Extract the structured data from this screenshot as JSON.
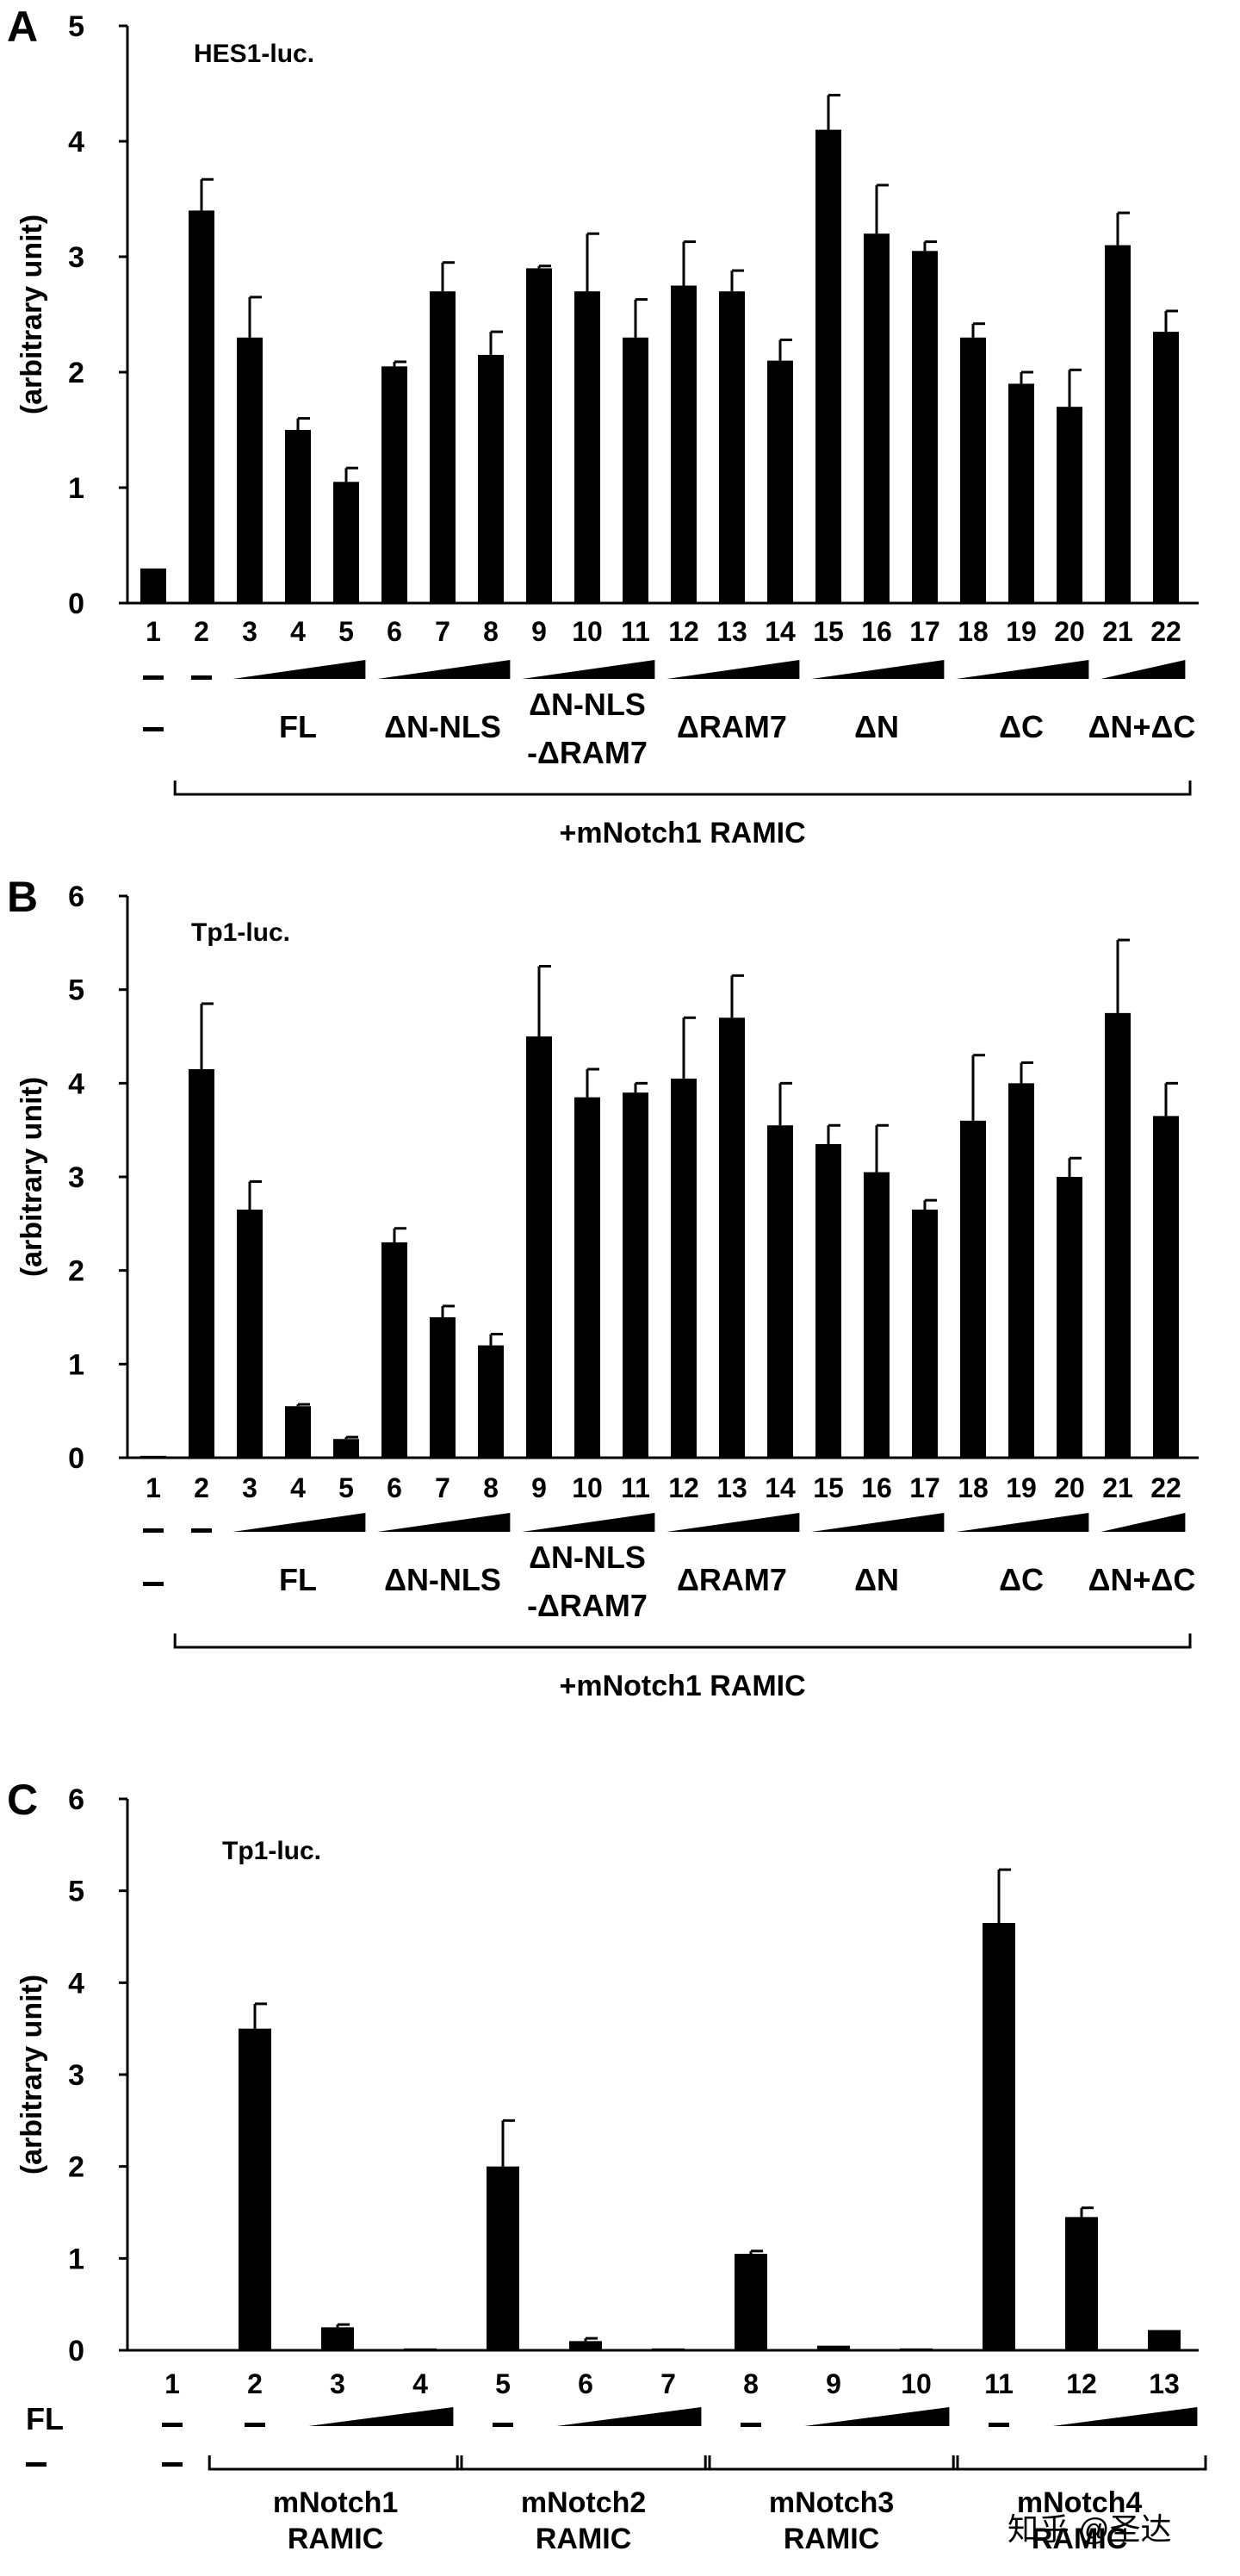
{
  "watermark": "知乎 @圣达",
  "chart_data": [
    {
      "panel": "A",
      "type": "bar",
      "title": "HES1-luc.",
      "ylabel": "(arbitrary unit)",
      "ylim": [
        0,
        5
      ],
      "yticks": [
        "0",
        "1",
        "2",
        "3",
        "4",
        "5"
      ],
      "categories": [
        "1",
        "2",
        "3",
        "4",
        "5",
        "6",
        "7",
        "8",
        "9",
        "10",
        "11",
        "12",
        "13",
        "14",
        "15",
        "16",
        "17",
        "18",
        "19",
        "20",
        "21",
        "22"
      ],
      "values": [
        0.3,
        3.4,
        2.3,
        1.5,
        1.05,
        2.05,
        2.7,
        2.15,
        2.9,
        2.7,
        2.3,
        2.75,
        2.7,
        2.1,
        4.1,
        3.2,
        3.05,
        2.3,
        1.9,
        1.7,
        3.1,
        2.35
      ],
      "errors": [
        0.0,
        0.27,
        0.35,
        0.1,
        0.12,
        0.04,
        0.25,
        0.2,
        0.02,
        0.5,
        0.33,
        0.38,
        0.18,
        0.18,
        0.3,
        0.42,
        0.08,
        0.12,
        0.1,
        0.32,
        0.28,
        0.18
      ],
      "dash_row": [
        "1",
        "2"
      ],
      "ramp_groups": [
        [
          "3",
          "5"
        ],
        [
          "6",
          "8"
        ],
        [
          "9",
          "11"
        ],
        [
          "12",
          "14"
        ],
        [
          "15",
          "17"
        ],
        [
          "18",
          "20"
        ],
        [
          "21",
          "22"
        ]
      ],
      "group_labels": [
        {
          "lines": [
            "–"
          ],
          "at": "1"
        },
        {
          "lines": [
            "FL"
          ],
          "at": "4"
        },
        {
          "lines": [
            "ΔN-NLS"
          ],
          "at": "7"
        },
        {
          "lines": [
            "ΔN-NLS",
            "-ΔRAM7"
          ],
          "at": "10"
        },
        {
          "lines": [
            "ΔRAM7"
          ],
          "at": "13"
        },
        {
          "lines": [
            "ΔN"
          ],
          "at": "16"
        },
        {
          "lines": [
            "ΔC"
          ],
          "at": "19"
        },
        {
          "lines": [
            "ΔN+ΔC"
          ],
          "at": "21.5"
        }
      ],
      "bracket": {
        "from": "2",
        "to": "22",
        "label": "+mNotch1 RAMIC"
      }
    },
    {
      "panel": "B",
      "type": "bar",
      "title": "Tp1-luc.",
      "ylabel": "(arbitrary unit)",
      "ylim": [
        0,
        6
      ],
      "yticks": [
        "0",
        "1",
        "2",
        "3",
        "4",
        "5",
        "6"
      ],
      "categories": [
        "1",
        "2",
        "3",
        "4",
        "5",
        "6",
        "7",
        "8",
        "9",
        "10",
        "11",
        "12",
        "13",
        "14",
        "15",
        "16",
        "17",
        "18",
        "19",
        "20",
        "21",
        "22"
      ],
      "values": [
        0.02,
        4.15,
        2.65,
        0.55,
        0.2,
        2.3,
        1.5,
        1.2,
        4.5,
        3.85,
        3.9,
        4.05,
        4.7,
        3.55,
        3.35,
        3.05,
        2.65,
        3.6,
        4.0,
        3.0,
        4.75,
        3.65
      ],
      "errors": [
        0.0,
        0.7,
        0.3,
        0.02,
        0.02,
        0.15,
        0.12,
        0.12,
        0.75,
        0.3,
        0.1,
        0.65,
        0.45,
        0.45,
        0.2,
        0.5,
        0.1,
        0.7,
        0.22,
        0.2,
        0.78,
        0.35
      ],
      "dash_row": [
        "1",
        "2"
      ],
      "ramp_groups": [
        [
          "3",
          "5"
        ],
        [
          "6",
          "8"
        ],
        [
          "9",
          "11"
        ],
        [
          "12",
          "14"
        ],
        [
          "15",
          "17"
        ],
        [
          "18",
          "20"
        ],
        [
          "21",
          "22"
        ]
      ],
      "group_labels": [
        {
          "lines": [
            "–"
          ],
          "at": "1"
        },
        {
          "lines": [
            "FL"
          ],
          "at": "4"
        },
        {
          "lines": [
            "ΔN-NLS"
          ],
          "at": "7"
        },
        {
          "lines": [
            "ΔN-NLS",
            "-ΔRAM7"
          ],
          "at": "10"
        },
        {
          "lines": [
            "ΔRAM7"
          ],
          "at": "13"
        },
        {
          "lines": [
            "ΔN"
          ],
          "at": "16"
        },
        {
          "lines": [
            "ΔC"
          ],
          "at": "19"
        },
        {
          "lines": [
            "ΔN+ΔC"
          ],
          "at": "21.5"
        }
      ],
      "bracket": {
        "from": "2",
        "to": "22",
        "label": "+mNotch1 RAMIC"
      }
    },
    {
      "panel": "C",
      "type": "bar",
      "title": "Tp1-luc.",
      "ylabel": "(arbitrary unit)",
      "ylim": [
        0,
        6
      ],
      "yticks": [
        "0",
        "1",
        "2",
        "3",
        "4",
        "5",
        "6"
      ],
      "categories": [
        "1",
        "2",
        "3",
        "4",
        "5",
        "6",
        "7",
        "8",
        "9",
        "10",
        "11",
        "12",
        "13"
      ],
      "values": [
        0.0,
        3.5,
        0.25,
        0.02,
        2.0,
        0.1,
        0.02,
        1.05,
        0.05,
        0.02,
        4.65,
        1.45,
        0.22
      ],
      "errors": [
        0.0,
        0.27,
        0.03,
        0.0,
        0.5,
        0.03,
        0.0,
        0.03,
        0.0,
        0.0,
        0.58,
        0.1,
        0.0
      ],
      "row_label": "FL",
      "dash_row": [
        "1",
        "2",
        "5",
        "8",
        "11"
      ],
      "ramp_groups": [
        [
          "3",
          "4"
        ],
        [
          "6",
          "7"
        ],
        [
          "9",
          "10"
        ],
        [
          "12",
          "13"
        ]
      ],
      "group_labels": [
        {
          "lines": [
            "–"
          ],
          "at": "1"
        }
      ],
      "brackets": [
        {
          "from": "2",
          "to": "4",
          "label": [
            "mNotch1",
            "RAMIC"
          ]
        },
        {
          "from": "5",
          "to": "7",
          "label": [
            "mNotch2",
            "RAMIC"
          ]
        },
        {
          "from": "8",
          "to": "10",
          "label": [
            "mNotch3",
            "RAMIC"
          ]
        },
        {
          "from": "11",
          "to": "13",
          "label": [
            "mNotch4",
            "RAMIC"
          ]
        }
      ]
    }
  ]
}
